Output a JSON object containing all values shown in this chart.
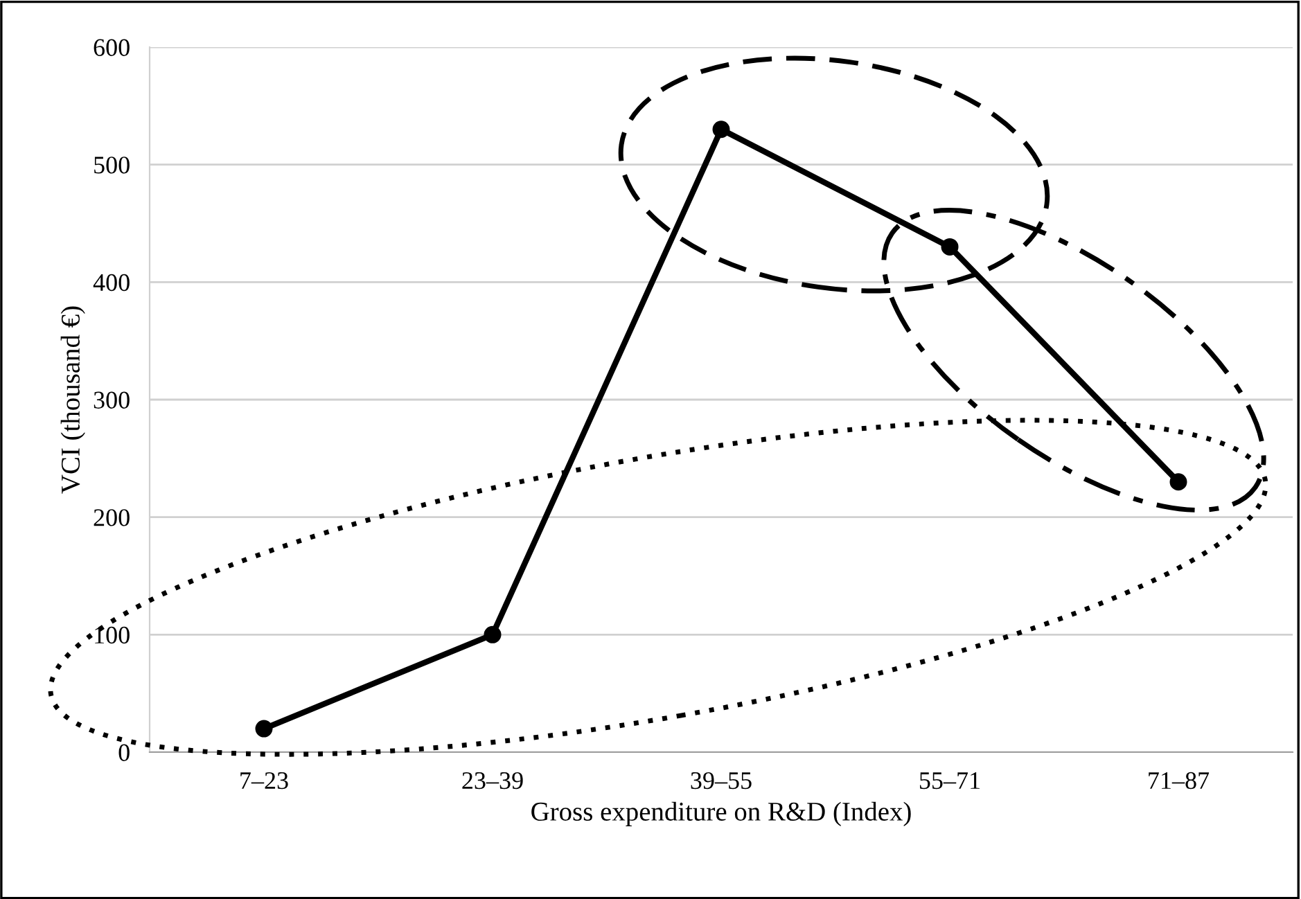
{
  "chart_data": {
    "type": "line",
    "xlabel": "Gross expenditure on R&D (Index)",
    "ylabel": "VCI (thousand €)",
    "categories": [
      "7–23",
      "23–39",
      "39–55",
      "55–71",
      "71–87"
    ],
    "series": [
      {
        "color": "#000000",
        "values": [
          20,
          100,
          530,
          430,
          230
        ]
      }
    ],
    "ylim": [
      0,
      600
    ],
    "yticks": [
      0,
      100,
      200,
      300,
      400,
      500,
      600
    ],
    "grid": "y",
    "legend": false,
    "marker": "circle",
    "line_style": "solid"
  }
}
